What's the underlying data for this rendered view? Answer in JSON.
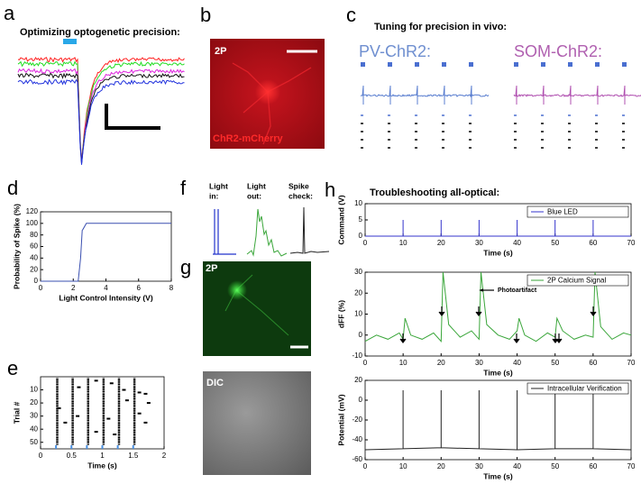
{
  "panels": {
    "a": {
      "label": "a",
      "title": "Optimizing optogenetic precision:"
    },
    "b": {
      "label": "b",
      "texts": [
        "2P",
        "ChR2-mCherry"
      ]
    },
    "c": {
      "label": "c",
      "title": "Tuning for precision in vivo:",
      "groups": [
        "PV-ChR2:",
        "SOM-ChR2:"
      ]
    },
    "f": {
      "label": "f",
      "columns": [
        [
          "Light",
          "in:"
        ],
        [
          "Light",
          "out:"
        ],
        [
          "Spike",
          "check:"
        ]
      ]
    },
    "g": {
      "label": "g",
      "texts": [
        "2P",
        "DIC"
      ]
    }
  },
  "chart_data": [
    {
      "type": "line",
      "panel": "d",
      "xlabel": "Light Control Intensity (V)",
      "ylabel": "Probability of Spike (%)",
      "xlim": [
        0,
        8
      ],
      "xticks": [
        0,
        2,
        4,
        6,
        8
      ],
      "ylim": [
        0,
        120
      ],
      "yticks": [
        0,
        20,
        40,
        60,
        80,
        100,
        120
      ],
      "series": [
        {
          "color": "#3a4fb0",
          "x": [
            0,
            2.3,
            2.45,
            2.55,
            2.6,
            2.8,
            8
          ],
          "values": [
            0,
            0,
            40,
            88,
            90,
            100,
            100
          ]
        }
      ]
    },
    {
      "type": "raster",
      "panel": "e",
      "xlabel": "Time (s)",
      "ylabel": "Trial #",
      "xlim": [
        0,
        2
      ],
      "xticks": [
        0,
        0.5,
        1,
        1.5,
        2
      ],
      "ylim": [
        55,
        0
      ],
      "yticks": [
        10,
        20,
        30,
        40,
        50
      ],
      "trial_range": [
        1,
        52
      ],
      "columns": [
        0.27,
        0.52,
        0.77,
        1.02,
        1.27,
        1.52
      ],
      "stim": [
        0.25,
        0.5,
        0.75,
        1.0,
        1.25,
        1.5
      ],
      "stim_color": "#4a90e2",
      "x": [
        0.62,
        0.9,
        1.15,
        1.35,
        1.6,
        1.7,
        1.75,
        1.6,
        1.7,
        0.4,
        0.6,
        0.9,
        1.2,
        0.3,
        1.4,
        1.1
      ],
      "values": [
        8,
        3,
        5,
        10,
        12,
        13,
        20,
        28,
        35,
        35,
        30,
        42,
        44,
        24,
        18,
        32
      ]
    },
    {
      "type": "line",
      "panel": "h",
      "title": "Troubleshooting all-optical:",
      "xlabel": "Time (s)",
      "ylabel": "Command (V)",
      "xlim": [
        0,
        70
      ],
      "xticks": [
        0,
        10,
        20,
        30,
        40,
        50,
        60,
        70
      ],
      "ylim": [
        0,
        10
      ],
      "yticks": [
        0,
        5,
        10
      ],
      "series": [
        {
          "name": "Blue LED",
          "color": "#3333cc",
          "x": [
            0,
            10,
            10,
            10,
            20,
            20,
            20,
            30,
            30,
            30,
            40,
            40,
            40,
            50,
            50,
            50,
            60,
            60,
            60,
            70
          ],
          "values": [
            0,
            0,
            5,
            0,
            0,
            5,
            0,
            0,
            5,
            0,
            0,
            5,
            0,
            0,
            5,
            0,
            0,
            5,
            0,
            0
          ]
        }
      ]
    },
    {
      "type": "line",
      "xlabel": "Time (s)",
      "ylabel": "dFF (%)",
      "annotation": "Photoartifact",
      "xlim": [
        0,
        70
      ],
      "xticks": [
        0,
        10,
        20,
        30,
        40,
        50,
        60,
        70
      ],
      "ylim": [
        -10,
        30
      ],
      "yticks": [
        -10,
        0,
        10,
        20,
        30
      ],
      "series": [
        {
          "name": "2P Calcium Signal",
          "color": "#3aa63a",
          "x": [
            0,
            3,
            6,
            9,
            10,
            10.5,
            12,
            15,
            18,
            20,
            20.5,
            22,
            25,
            28,
            30,
            30.5,
            32,
            35,
            38,
            40,
            40.5,
            42,
            45,
            48,
            50,
            50.5,
            52,
            55,
            58,
            60,
            60.5,
            62,
            65,
            68,
            70
          ],
          "values": [
            -3,
            0,
            -2,
            1,
            -2,
            8,
            0,
            -2,
            1,
            -3,
            30,
            5,
            -1,
            2,
            -2,
            30,
            5,
            0,
            -2,
            2,
            8,
            0,
            -3,
            1,
            -1,
            8,
            2,
            -2,
            0,
            -1,
            30,
            4,
            -2,
            1,
            0
          ]
        }
      ]
    },
    {
      "type": "line",
      "xlabel": "Time (s)",
      "ylabel": "Potential (mV)",
      "xlim": [
        0,
        70
      ],
      "xticks": [
        0,
        10,
        20,
        30,
        40,
        50,
        60,
        70
      ],
      "ylim": [
        -60,
        20
      ],
      "yticks": [
        -60,
        -40,
        -20,
        0,
        20
      ],
      "series": [
        {
          "name": "Intracellular Verification",
          "color": "#222222",
          "x": [
            0,
            10,
            10,
            10,
            20,
            20,
            20,
            30,
            30,
            30,
            40,
            40,
            40,
            50,
            50,
            50,
            60,
            60,
            60,
            70
          ],
          "values": [
            -50,
            -49,
            10,
            -49,
            -48,
            10,
            -48,
            -49,
            10,
            -49,
            -50,
            10,
            -50,
            -49,
            10,
            -49,
            -49,
            10,
            -49,
            -50
          ]
        }
      ]
    }
  ]
}
